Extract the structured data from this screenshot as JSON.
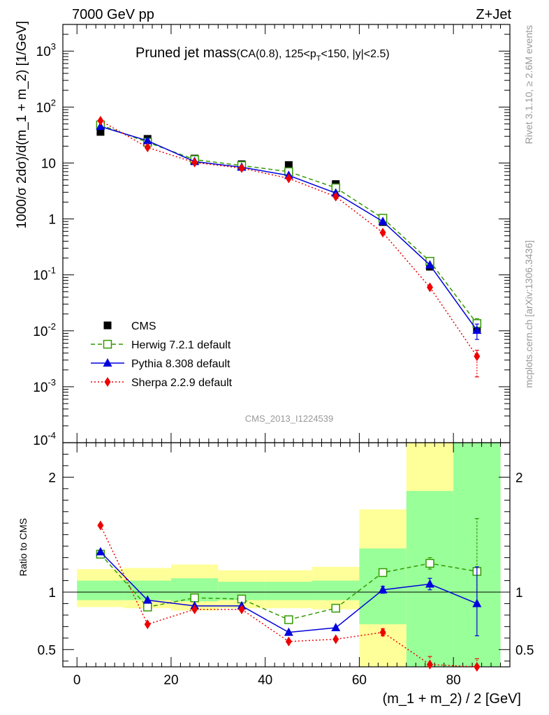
{
  "header": {
    "left": "7000 GeV pp",
    "right": "Z+Jet"
  },
  "side_labels": {
    "rivet": "Rivet 3.1.10, ≥ 2.6M events",
    "mcplots": "mcplots.cern.ch [arXiv:1306.3436]"
  },
  "analysis_id": "CMS_2013_I1224539",
  "title": {
    "main": "Pruned jet mass",
    "sub": "(CA(0.8), 125<p",
    "sub_index": "T",
    "sub_tail": "<150, |y|<2.5)"
  },
  "colors": {
    "herwig": "#339900",
    "pythia": "#0000dd",
    "sherpa": "#ee0000",
    "data": "#000000",
    "band_yellow": "#ffff99",
    "band_green": "#99ff99"
  },
  "chart_data": [
    {
      "type": "line",
      "scale": "log",
      "ylabel": "1000/σ 2dσ)/d(m_1 + m_2) [1/GeV]",
      "xlim": [
        -3,
        92
      ],
      "ylim": [
        0.0001,
        3000
      ],
      "y_ticks": [
        {
          "value": 0.001,
          "label": "10",
          "exp": "-3"
        },
        {
          "value": 0.01,
          "label": "10",
          "exp": "-2"
        },
        {
          "value": 0.1,
          "label": "10",
          "exp": "-1"
        },
        {
          "value": 1,
          "label": "1",
          "exp": ""
        },
        {
          "value": 10,
          "label": "10",
          "exp": ""
        },
        {
          "value": 100,
          "label": "10",
          "exp": "2"
        },
        {
          "value": 1000,
          "label": "10",
          "exp": "3"
        }
      ],
      "y_bottom_label": {
        "value": 0.0001,
        "label": "10",
        "exp": "-4"
      },
      "data": {
        "name": "CMS",
        "x": [
          5,
          15,
          25,
          35,
          45,
          55,
          65,
          75,
          85
        ],
        "y": [
          36,
          27,
          12,
          9.5,
          9.2,
          4.2,
          0.88,
          0.14,
          0.011
        ]
      },
      "series": [
        {
          "name": "Herwig 7.2.1 default",
          "key": "herwig",
          "x": [
            5,
            15,
            25,
            35,
            45,
            55,
            65,
            75,
            85
          ],
          "y": [
            48,
            23.5,
            11.5,
            9.0,
            7.0,
            3.6,
            1.03,
            0.175,
            0.0135
          ],
          "yerr_lo": [
            0,
            0,
            0,
            0,
            0,
            0,
            0,
            0,
            0.003
          ],
          "yerr_hi": [
            0,
            0,
            0,
            0,
            0,
            0,
            0,
            0,
            0.003
          ]
        },
        {
          "name": "Pythia 8.308 default",
          "key": "pythia",
          "x": [
            5,
            15,
            25,
            35,
            45,
            55,
            65,
            75,
            85
          ],
          "y": [
            45,
            25,
            10.6,
            8.4,
            6.0,
            2.9,
            0.9,
            0.15,
            0.0102
          ],
          "yerr_lo": [
            0,
            0,
            0,
            0,
            0,
            0,
            0,
            0,
            0.0032
          ],
          "yerr_hi": [
            0,
            0,
            0,
            0,
            0,
            0,
            0,
            0,
            0.003
          ]
        },
        {
          "name": "Sherpa 2.2.9 default",
          "key": "sherpa",
          "x": [
            5,
            15,
            25,
            35,
            45,
            55,
            65,
            75,
            85
          ],
          "y": [
            57,
            19,
            10.2,
            8.1,
            5.3,
            2.5,
            0.57,
            0.06,
            0.0035
          ],
          "yerr_lo": [
            0,
            0,
            0,
            0,
            0,
            0,
            0,
            0,
            0.002
          ],
          "yerr_hi": [
            0,
            0,
            0,
            0,
            0,
            0,
            0,
            0,
            0.001
          ]
        }
      ]
    },
    {
      "type": "line",
      "ylabel": "Ratio to CMS",
      "xlabel": "(m_1 + m_2) / 2 [GeV]",
      "xlim": [
        -3,
        92
      ],
      "ylim": [
        0.35,
        2.3
      ],
      "x_ticks": [
        0,
        20,
        40,
        60,
        80
      ],
      "y_ticks": [
        {
          "value": 0.5,
          "label": "0.5"
        },
        {
          "value": 1,
          "label": "1"
        },
        {
          "value": 2,
          "label": "2"
        }
      ],
      "bands": [
        {
          "x0": 0,
          "x1": 10,
          "yellow": [
            0.87,
            1.2
          ],
          "green": [
            0.93,
            1.1
          ]
        },
        {
          "x0": 10,
          "x1": 20,
          "yellow": [
            0.86,
            1.21
          ],
          "green": [
            0.93,
            1.1
          ]
        },
        {
          "x0": 20,
          "x1": 30,
          "yellow": [
            0.84,
            1.24
          ],
          "green": [
            0.92,
            1.12
          ]
        },
        {
          "x0": 30,
          "x1": 40,
          "yellow": [
            0.86,
            1.19
          ],
          "green": [
            0.93,
            1.09
          ]
        },
        {
          "x0": 40,
          "x1": 50,
          "yellow": [
            0.86,
            1.19
          ],
          "green": [
            0.93,
            1.09
          ]
        },
        {
          "x0": 50,
          "x1": 60,
          "yellow": [
            0.85,
            1.22
          ],
          "green": [
            0.93,
            1.1
          ]
        },
        {
          "x0": 60,
          "x1": 70,
          "yellow": [
            0.35,
            1.72
          ],
          "green": [
            0.72,
            1.38
          ]
        },
        {
          "x0": 70,
          "x1": 80,
          "yellow": [
            0.35,
            2.3
          ],
          "green": [
            0.35,
            1.88
          ]
        },
        {
          "x0": 80,
          "x1": 90,
          "yellow": [
            0.35,
            2.3
          ],
          "green": [
            0.35,
            2.3
          ]
        }
      ],
      "series": [
        {
          "name": "Herwig 7.2.1 default",
          "key": "herwig",
          "x": [
            5,
            15,
            25,
            35,
            45,
            55,
            65,
            75,
            85
          ],
          "y": [
            1.33,
            0.87,
            0.95,
            0.94,
            0.76,
            0.86,
            1.17,
            1.25,
            1.18
          ],
          "yerr_lo": [
            0,
            0,
            0,
            0,
            0,
            0,
            0.03,
            0.05,
            0.28
          ],
          "yerr_hi": [
            0,
            0,
            0,
            0,
            0,
            0,
            0.03,
            0.05,
            0.46
          ]
        },
        {
          "name": "Pythia 8.308 default",
          "key": "pythia",
          "x": [
            5,
            15,
            25,
            35,
            45,
            55,
            65,
            75,
            85
          ],
          "y": [
            1.35,
            0.93,
            0.88,
            0.88,
            0.65,
            0.69,
            1.02,
            1.07,
            0.9
          ],
          "yerr_lo": [
            0,
            0,
            0,
            0,
            0,
            0,
            0.03,
            0.05,
            0.28
          ],
          "yerr_hi": [
            0,
            0,
            0,
            0,
            0,
            0,
            0.03,
            0.05,
            0.32
          ]
        },
        {
          "name": "Sherpa 2.2.9 default",
          "key": "sherpa",
          "x": [
            5,
            15,
            25,
            35,
            45,
            55,
            65,
            75,
            85
          ],
          "y": [
            1.58,
            0.72,
            0.85,
            0.85,
            0.57,
            0.59,
            0.65,
            0.37,
            0.32
          ],
          "yerr_lo": [
            0,
            0,
            0,
            0,
            0,
            0,
            0.03,
            0.03,
            0.1
          ],
          "yerr_hi": [
            0,
            0,
            0,
            0,
            0,
            0,
            0.03,
            0.07,
            0.1
          ]
        }
      ]
    }
  ],
  "legend": [
    {
      "label": "CMS",
      "key": "data"
    },
    {
      "label": "Herwig 7.2.1 default",
      "key": "herwig"
    },
    {
      "label": "Pythia 8.308 default",
      "key": "pythia"
    },
    {
      "label": "Sherpa 2.2.9 default",
      "key": "sherpa"
    }
  ]
}
